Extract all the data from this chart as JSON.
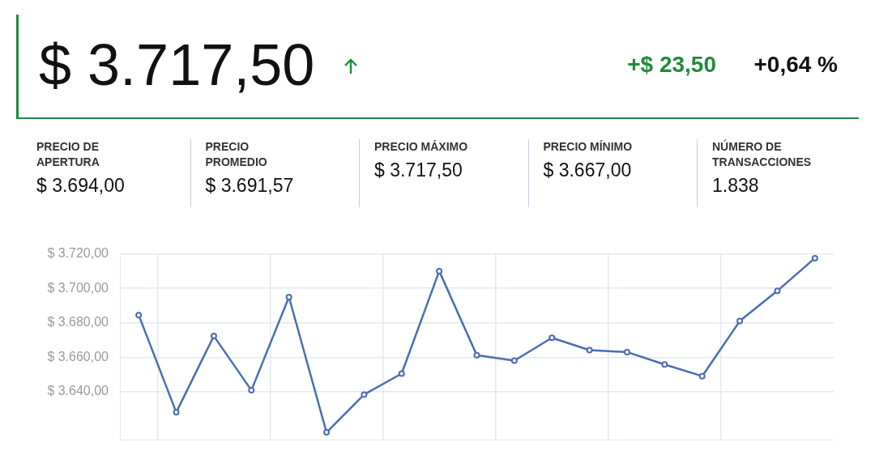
{
  "chart_data": [
    {
      "type": "other",
      "annotations": [
        "$ 3.717,50",
        "+$ 23,50",
        "+0,64 %",
        "PRECIO DE APERTURA",
        "$ 3.694,00",
        "PRECIO PROMEDIO",
        "$ 3.691,57",
        "PRECIO MÁXIMO",
        "$ 3.717,50",
        "PRECIO MÍNIMO",
        "$ 3.667,00",
        "NÚMERO DE TRANSACCIONES",
        "1.838"
      ]
    },
    {
      "type": "line",
      "categories": [
        null,
        null,
        null,
        null,
        null,
        null,
        null,
        null,
        null,
        null,
        null,
        null,
        null,
        null,
        null,
        null,
        null,
        null,
        null
      ],
      "series": [
        {
          "color": "#4a6db3",
          "values": [
            3684.5,
            3628,
            3672.3,
            3640.8,
            3694.9,
            3616.4,
            3638.3,
            3650.5,
            3710,
            3661.2,
            3658,
            3671.3,
            3664.1,
            3663,
            3655.8,
            3649,
            3681,
            3698.5,
            3717.5
          ]
        }
      ],
      "ylim": [
        3612,
        3720
      ],
      "yticks": [
        {
          "value": 3640,
          "label": "$ 3.640,00"
        },
        {
          "value": 3660,
          "label": "$ 3.660,00"
        },
        {
          "value": 3680,
          "label": "$ 3.680,00"
        },
        {
          "value": 3700,
          "label": "$ 3.700,00"
        },
        {
          "value": 3720,
          "label": "$ 3.720,00"
        }
      ],
      "tick_labels": "y",
      "grid": true,
      "marker": "circle",
      "line_style": "solid",
      "legend": false
    }
  ]
}
